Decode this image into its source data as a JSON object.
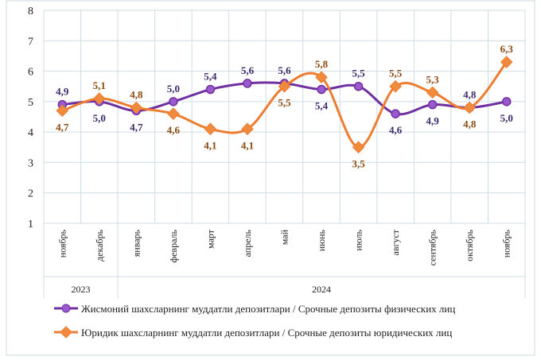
{
  "chart_data": {
    "type": "line",
    "categories": [
      "ноябрь",
      "декабрь",
      "январь",
      "февраль",
      "март",
      "апрель",
      "май",
      "июнь",
      "июль",
      "август",
      "сентябрь",
      "октябрь",
      "ноябрь"
    ],
    "year_groups": [
      {
        "label": "2023",
        "count": 2
      },
      {
        "label": "2024",
        "count": 11
      }
    ],
    "ylim": [
      1,
      8
    ],
    "yticks": [
      1,
      2,
      3,
      4,
      5,
      6,
      7,
      8
    ],
    "grid": true,
    "legend_placement": "bottom",
    "series": [
      {
        "name": "Жисмоний шахсларнинг  муддатли  депозитлари / Срочные депозиты физических лиц",
        "color": "#7030a0",
        "marker": "circle",
        "values": [
          4.9,
          5.0,
          4.7,
          5.0,
          5.4,
          5.6,
          5.6,
          5.4,
          5.5,
          4.6,
          4.9,
          4.8,
          5.0
        ],
        "labels": [
          "4,9",
          "5,0",
          "4,7",
          "5,0",
          "5,4",
          "5,6",
          "5,6",
          "5,4",
          "5,5",
          "4,6",
          "4,9",
          "4,8",
          "5,0"
        ]
      },
      {
        "name": "Юридик шахсларнинг  муддатли  депозитлари / Срочные депозиты юридических лиц",
        "color": "#ed7d31",
        "marker": "diamond",
        "values": [
          4.7,
          5.1,
          4.8,
          4.6,
          4.1,
          4.1,
          5.5,
          5.8,
          3.5,
          5.5,
          5.3,
          4.8,
          6.3
        ],
        "labels": [
          "4,7",
          "5,1",
          "4,8",
          "4,6",
          "4,1",
          "4,1",
          "5,5",
          "5,8",
          "3,5",
          "5,5",
          "5,3",
          "4,8",
          "6,3"
        ]
      }
    ]
  }
}
